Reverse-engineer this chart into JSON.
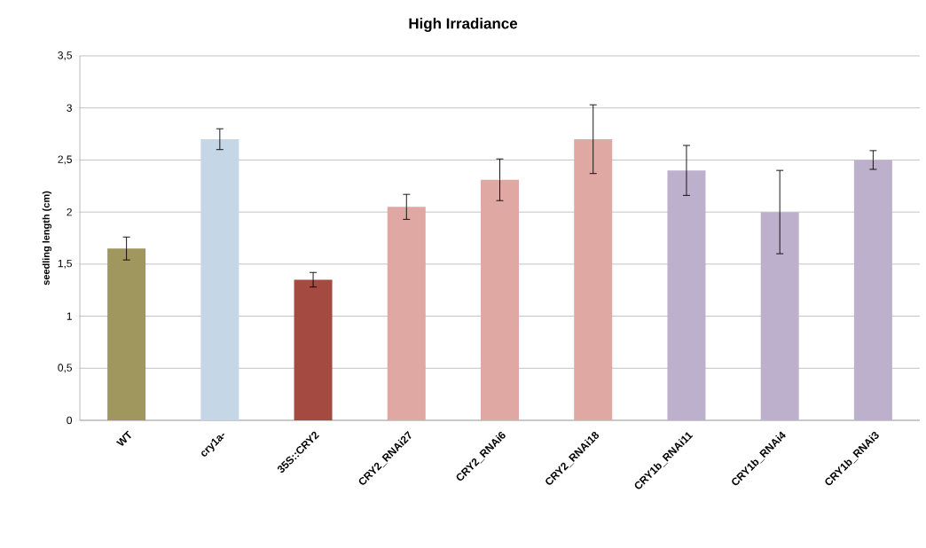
{
  "chart_data": {
    "type": "bar",
    "title": "High Irradiance",
    "ylabel": "seedling length (cm)",
    "categories": [
      "WT",
      "cry1a-",
      "35S::CRY2",
      "CRY2_RNAi27",
      "CRY2_RNAi6",
      "CRY2_RNAi18",
      "CRY1b_RNAi11",
      "CRY1b_RNAi4",
      "CRY1b_RNAi3"
    ],
    "values": [
      1.65,
      2.7,
      1.35,
      2.05,
      2.31,
      2.7,
      2.4,
      2.0,
      2.5
    ],
    "errors": [
      0.11,
      0.1,
      0.07,
      0.12,
      0.2,
      0.33,
      0.24,
      0.4,
      0.09
    ],
    "colors": [
      "#a0975e",
      "#c5d6e6",
      "#a54a41",
      "#dfa8a3",
      "#dfa8a3",
      "#dfa8a3",
      "#bdb0cc",
      "#bdb0cc",
      "#bdb0cc"
    ],
    "ylim": [
      0,
      3.5
    ],
    "yticks": [
      0,
      {
        "value": 0.5,
        "label": "0,5"
      },
      1,
      {
        "value": 1.5,
        "label": "1,5"
      },
      2,
      {
        "value": 2.5,
        "label": "2,5"
      },
      3,
      {
        "value": 3.5,
        "label": "3,5"
      }
    ],
    "grid": "y"
  }
}
